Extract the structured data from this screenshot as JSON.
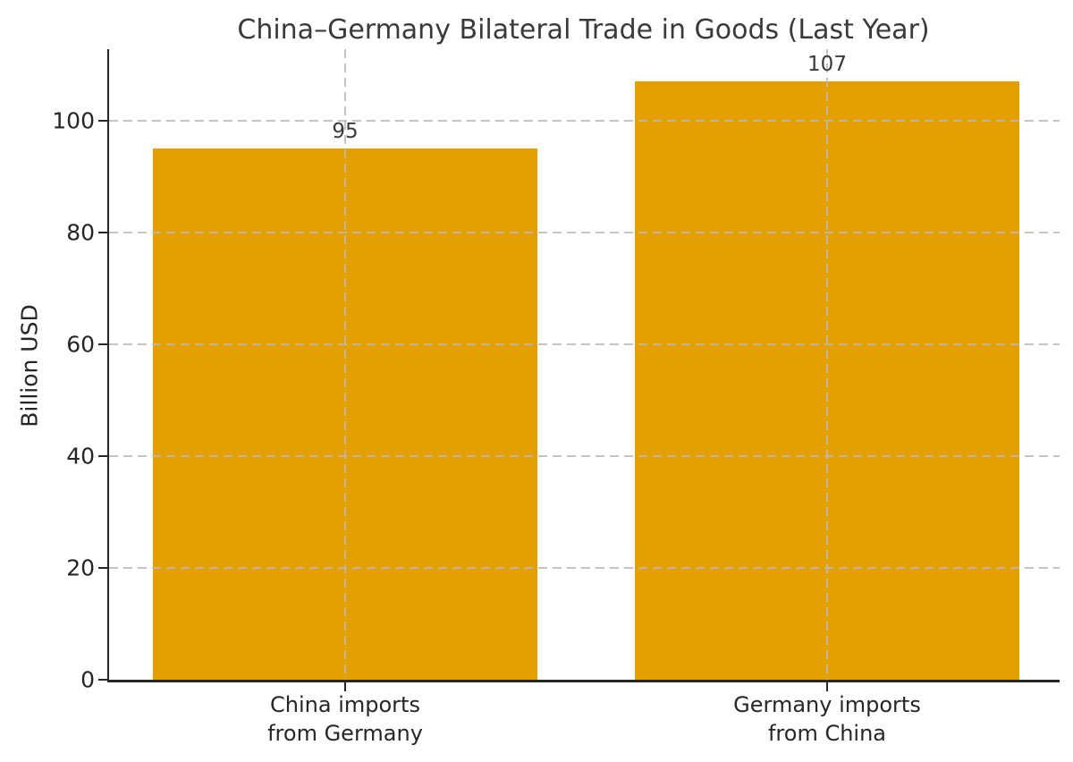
{
  "chart_data": {
    "type": "bar",
    "title": "China–Germany Bilateral Trade in Goods (Last Year)",
    "xlabel": "",
    "ylabel": "Billion USD",
    "categories": [
      "China imports\nfrom Germany",
      "Germany imports\nfrom China"
    ],
    "values": [
      95,
      107
    ],
    "bar_value_labels": [
      "95",
      "107"
    ],
    "yticks": [
      0,
      20,
      40,
      60,
      80,
      100
    ],
    "ylim": [
      0,
      113.3
    ],
    "bar_color": "#e4a000",
    "grid": "dashed horizontal gridlines at y ticks and dashed vertical gridlines at bar centers",
    "grid_color": "#b9b9b9",
    "legend": "none",
    "spines": [
      "left",
      "bottom"
    ],
    "text_color": "#262626",
    "title_color": "#3a3a3a",
    "background_color": "#ffffff"
  }
}
